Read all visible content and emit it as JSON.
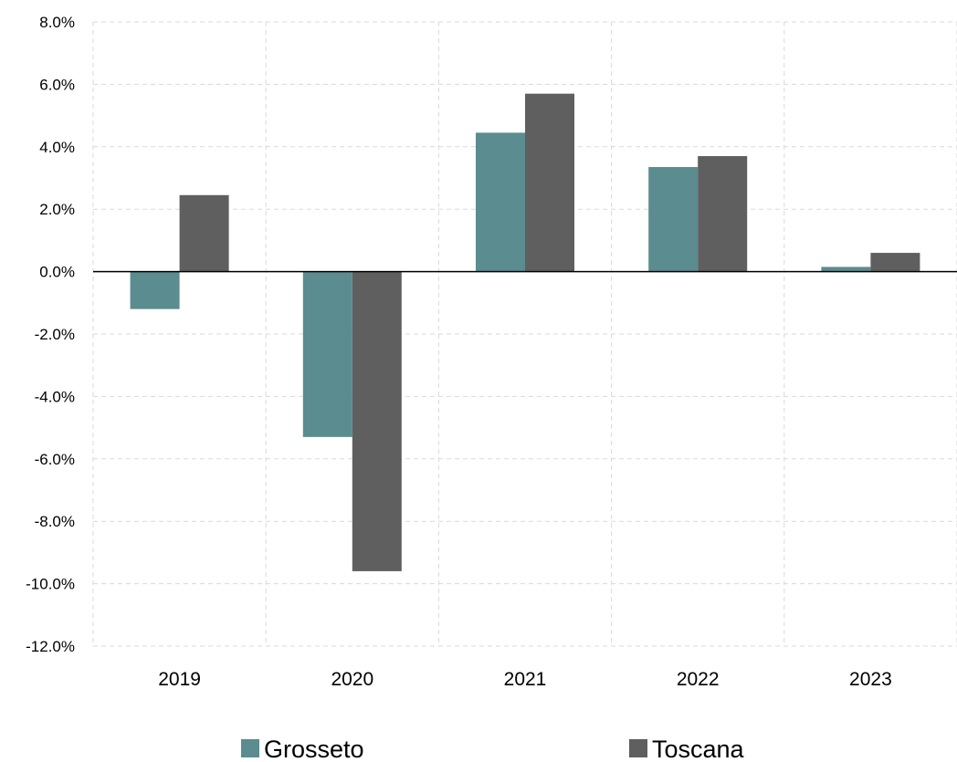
{
  "chart_data": {
    "type": "bar",
    "categories": [
      "2019",
      "2020",
      "2021",
      "2022",
      "2023"
    ],
    "series": [
      {
        "name": "Grosseto",
        "color": "#5b8c8f",
        "values": [
          -1.2,
          -5.3,
          4.45,
          3.35,
          0.15
        ]
      },
      {
        "name": "Toscana",
        "color": "#5f5f5f",
        "values": [
          2.45,
          -9.6,
          5.7,
          3.7,
          0.6
        ]
      }
    ],
    "ylim": [
      -12,
      8
    ],
    "yticks": [
      8,
      6,
      4,
      2,
      0,
      -2,
      -4,
      -6,
      -8,
      -10,
      -12
    ],
    "ytick_labels": [
      "8.0%",
      "6.0%",
      "4.0%",
      "2.0%",
      "0.0%",
      "-2.0%",
      "-4.0%",
      "-6.0%",
      "-8.0%",
      "-10.0%",
      "-12.0%"
    ],
    "grid": true,
    "legend_position": "bottom"
  }
}
